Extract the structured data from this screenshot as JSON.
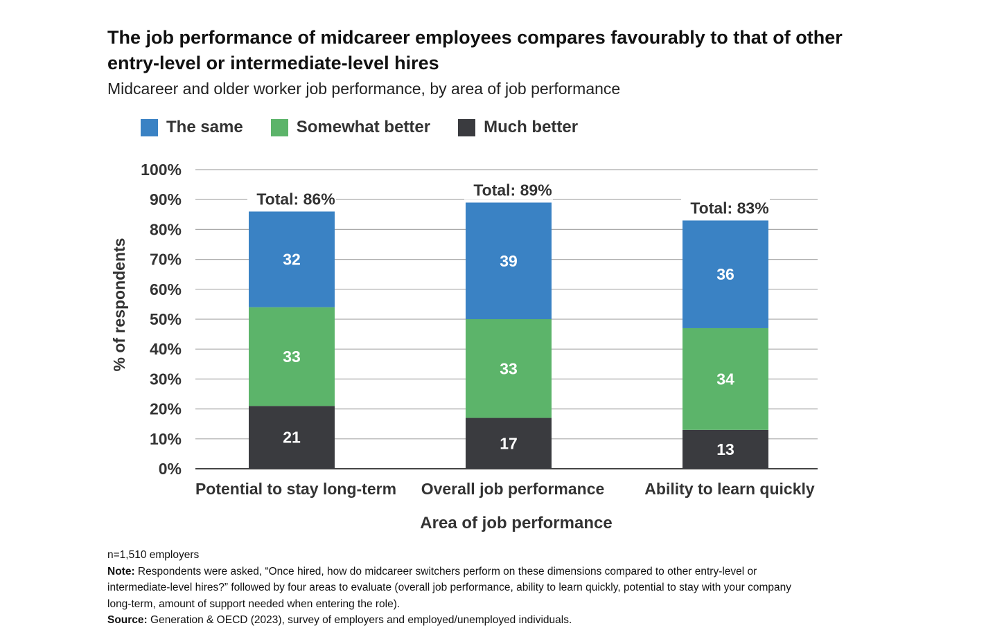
{
  "title": "The job performance of midcareer employees compares favourably to that of other entry-level or intermediate-level hires",
  "subtitle": "Midcareer and older worker job performance, by area of job performance",
  "colors": {
    "the_same": "#3a82c4",
    "somewhat_better": "#5cb46a",
    "much_better": "#3a3b3f",
    "grid": "#aaaaaa",
    "axis": "#444444"
  },
  "chart_data": {
    "type": "bar",
    "stacked": true,
    "categories": [
      "Potential to stay long-term",
      "Overall job performance",
      "Ability to learn quickly"
    ],
    "series": [
      {
        "name": "Much better",
        "values": [
          21,
          17,
          13
        ],
        "color": "#3a3b3f"
      },
      {
        "name": "Somewhat better",
        "values": [
          33,
          33,
          34
        ],
        "color": "#5cb46a"
      },
      {
        "name": "The same",
        "values": [
          32,
          39,
          36
        ],
        "color": "#3a82c4"
      }
    ],
    "totals": [
      86,
      89,
      83
    ],
    "total_labels": [
      "Total: 86%",
      "Total: 89%",
      "Total: 83%"
    ],
    "legend_order": [
      "The same",
      "Somewhat better",
      "Much better"
    ],
    "legend_position": "top-left",
    "xlabel": "Area of job performance",
    "ylabel": "% of respondents",
    "ylim": [
      0,
      100
    ],
    "yticks": [
      "0%",
      "10%",
      "20%",
      "30%",
      "40%",
      "50%",
      "60%",
      "70%",
      "80%",
      "90%",
      "100%"
    ],
    "grid": true
  },
  "footnotes": {
    "sample": "n=1,510 employers",
    "note_label": "Note:",
    "note_text": "Respondents were asked, “Once hired, how do midcareer switchers perform on these dimensions compared to other entry-level or intermediate-level hires?” followed by four areas to evaluate (overall job performance, ability to learn quickly, potential to stay with your company long-term, amount of support needed when entering the role).",
    "source_label": "Source:",
    "source_text": "Generation & OECD (2023), survey of employers and employed/unemployed individuals."
  }
}
